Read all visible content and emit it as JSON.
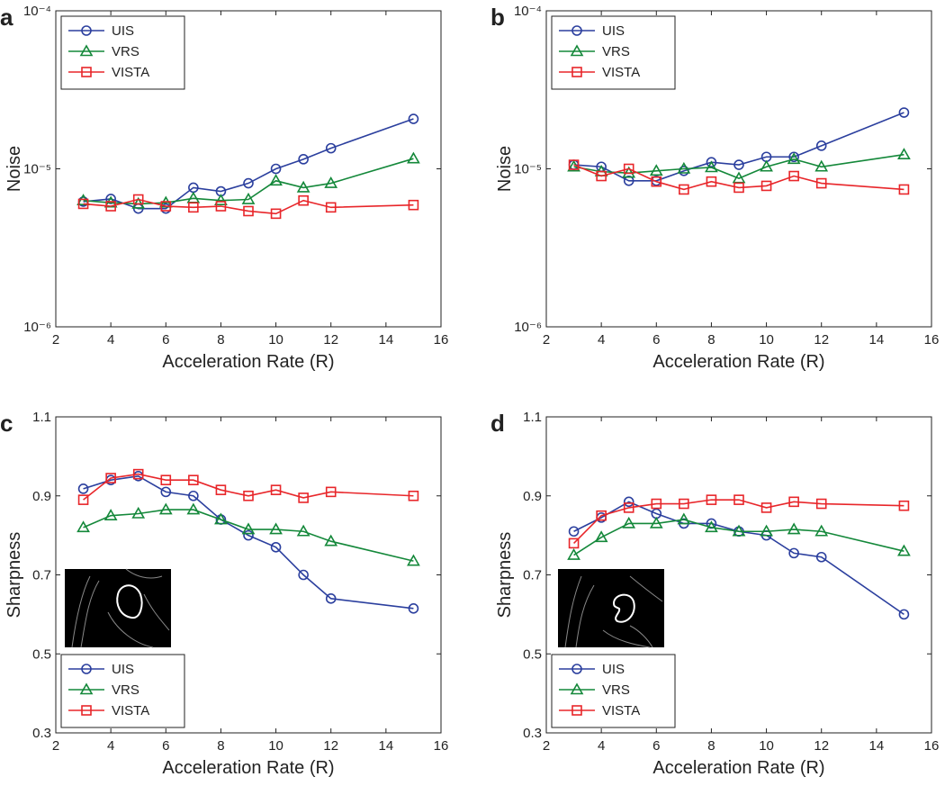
{
  "chart_data": [
    {
      "type": "line",
      "panel": "a",
      "xlabel": "Acceleration Rate (R)",
      "ylabel": "Noise",
      "log_y": true,
      "legend": "upper left",
      "x": [
        3,
        4,
        5,
        6,
        7,
        8,
        9,
        10,
        11,
        12,
        15
      ],
      "xlim": [
        2,
        16
      ],
      "xticks": [
        2,
        4,
        6,
        8,
        10,
        12,
        14,
        16
      ],
      "ylim": [
        1e-06,
        0.0001
      ],
      "yticks": [
        {
          "value": 1e-06,
          "label": "10⁻⁶"
        },
        {
          "value": 1e-05,
          "label": "10⁻⁵"
        },
        {
          "value": 0.0001,
          "label": "10⁻⁴"
        }
      ],
      "series": [
        {
          "name": "UIS",
          "color": "#2b3f9e",
          "marker": "circle",
          "values": [
            6.2e-06,
            6.45e-06,
            5.6e-06,
            5.6e-06,
            7.6e-06,
            7.2e-06,
            8.1e-06,
            1e-05,
            1.15e-05,
            1.35e-05,
            2.07e-05
          ]
        },
        {
          "name": "VRS",
          "color": "#14883a",
          "marker": "triangle",
          "values": [
            6.3e-06,
            6.1e-06,
            6e-06,
            6.1e-06,
            6.5e-06,
            6.3e-06,
            6.4e-06,
            8.4e-06,
            7.6e-06,
            8.1e-06,
            1.16e-05
          ]
        },
        {
          "name": "VISTA",
          "color": "#e8262a",
          "marker": "square",
          "values": [
            6e-06,
            5.8e-06,
            6.4e-06,
            5.8e-06,
            5.7e-06,
            5.8e-06,
            5.4e-06,
            5.2e-06,
            6.3e-06,
            5.7e-06,
            5.9e-06
          ]
        }
      ]
    },
    {
      "type": "line",
      "panel": "b",
      "xlabel": "Acceleration Rate (R)",
      "ylabel": "Noise",
      "log_y": true,
      "legend": "upper left",
      "x": [
        3,
        4,
        5,
        6,
        7,
        8,
        9,
        10,
        11,
        12,
        15
      ],
      "xlim": [
        2,
        16
      ],
      "xticks": [
        2,
        4,
        6,
        8,
        10,
        12,
        14,
        16
      ],
      "ylim": [
        1e-06,
        0.0001
      ],
      "yticks": [
        {
          "value": 1e-06,
          "label": "10⁻⁶"
        },
        {
          "value": 1e-05,
          "label": "10⁻⁵"
        },
        {
          "value": 0.0001,
          "label": "10⁻⁴"
        }
      ],
      "series": [
        {
          "name": "UIS",
          "color": "#2b3f9e",
          "marker": "circle",
          "values": [
            1.06e-05,
            1.03e-05,
            8.4e-06,
            8.4e-06,
            9.7e-06,
            1.1e-05,
            1.06e-05,
            1.19e-05,
            1.19e-05,
            1.4e-05,
            2.27e-05
          ]
        },
        {
          "name": "VRS",
          "color": "#14883a",
          "marker": "triangle",
          "values": [
            1.03e-05,
            9.6e-06,
            9.4e-06,
            9.7e-06,
            1e-05,
            1.02e-05,
            8.7e-06,
            1.03e-05,
            1.15e-05,
            1.03e-05,
            1.23e-05
          ]
        },
        {
          "name": "VISTA",
          "color": "#e8262a",
          "marker": "square",
          "values": [
            1.06e-05,
            9e-06,
            1e-05,
            8.3e-06,
            7.4e-06,
            8.3e-06,
            7.6e-06,
            7.8e-06,
            9e-06,
            8.1e-06,
            7.4e-06
          ]
        }
      ]
    },
    {
      "type": "line",
      "panel": "c",
      "xlabel": "Acceleration Rate (R)",
      "ylabel": "Sharpness",
      "log_y": false,
      "legend": "lower left",
      "x": [
        3,
        4,
        5,
        6,
        7,
        8,
        9,
        10,
        11,
        12,
        15
      ],
      "xlim": [
        2,
        16
      ],
      "xticks": [
        2,
        4,
        6,
        8,
        10,
        12,
        14,
        16
      ],
      "ylim": [
        0.3,
        1.1
      ],
      "yticks": [
        0.3,
        0.5,
        0.7,
        0.9,
        1.1
      ],
      "series": [
        {
          "name": "UIS",
          "color": "#2b3f9e",
          "marker": "circle",
          "values": [
            0.918,
            0.94,
            0.95,
            0.91,
            0.9,
            0.84,
            0.8,
            0.77,
            0.7,
            0.64,
            0.615
          ]
        },
        {
          "name": "VRS",
          "color": "#14883a",
          "marker": "triangle",
          "values": [
            0.82,
            0.85,
            0.855,
            0.865,
            0.865,
            0.84,
            0.815,
            0.815,
            0.81,
            0.785,
            0.735
          ]
        },
        {
          "name": "VISTA",
          "color": "#e8262a",
          "marker": "square",
          "values": [
            0.89,
            0.945,
            0.955,
            0.94,
            0.94,
            0.915,
            0.9,
            0.915,
            0.895,
            0.91,
            0.9
          ]
        }
      ]
    },
    {
      "type": "line",
      "panel": "d",
      "xlabel": "Acceleration Rate (R)",
      "ylabel": "Sharpness",
      "log_y": false,
      "legend": "lower left",
      "x": [
        3,
        4,
        5,
        6,
        7,
        8,
        9,
        10,
        11,
        12,
        15
      ],
      "xlim": [
        2,
        16
      ],
      "xticks": [
        2,
        4,
        6,
        8,
        10,
        12,
        14,
        16
      ],
      "ylim": [
        0.3,
        1.1
      ],
      "yticks": [
        0.3,
        0.5,
        0.7,
        0.9,
        1.1
      ],
      "series": [
        {
          "name": "UIS",
          "color": "#2b3f9e",
          "marker": "circle",
          "values": [
            0.81,
            0.845,
            0.885,
            0.855,
            0.83,
            0.83,
            0.81,
            0.8,
            0.755,
            0.745,
            0.6
          ]
        },
        {
          "name": "VRS",
          "color": "#14883a",
          "marker": "triangle",
          "values": [
            0.75,
            0.795,
            0.83,
            0.83,
            0.84,
            0.82,
            0.81,
            0.81,
            0.815,
            0.81,
            0.76
          ]
        },
        {
          "name": "VISTA",
          "color": "#e8262a",
          "marker": "square",
          "values": [
            0.78,
            0.85,
            0.87,
            0.88,
            0.88,
            0.89,
            0.89,
            0.87,
            0.885,
            0.88,
            0.875
          ]
        }
      ]
    }
  ]
}
